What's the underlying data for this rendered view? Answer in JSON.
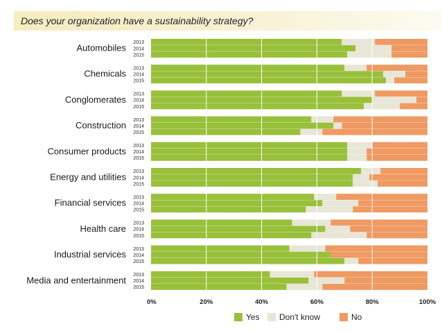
{
  "title": "Does your organization have a sustainability strategy?",
  "colors": {
    "yes": "#99c03a",
    "dont_know": "#e8e6d6",
    "no": "#ef9a62",
    "grid": "#ffffff"
  },
  "chart_data": {
    "type": "bar",
    "orientation": "horizontal",
    "stacked": true,
    "title": "Does your organization have a sustainability strategy?",
    "xlabel": "",
    "ylabel": "",
    "xlim": [
      0,
      100
    ],
    "x_ticks": [
      "0%",
      "20%",
      "40%",
      "60%",
      "80%",
      "100%"
    ],
    "legend": {
      "position": "bottom",
      "entries": [
        "Yes",
        "Don't know",
        "No"
      ]
    },
    "groups": [
      {
        "category": "Automobiles",
        "years": [
          "2013",
          "2014",
          "2015"
        ],
        "yes": [
          69,
          74,
          71
        ],
        "dont_know": [
          12,
          13,
          16
        ],
        "no": [
          19,
          13,
          13
        ]
      },
      {
        "category": "Chemicals",
        "years": [
          "2013",
          "2014",
          "2015"
        ],
        "yes": [
          70,
          84,
          85
        ],
        "dont_know": [
          8,
          8,
          3
        ],
        "no": [
          22,
          8,
          12
        ]
      },
      {
        "category": "Conglomerates",
        "years": [
          "2013",
          "2014",
          "2015"
        ],
        "yes": [
          69,
          80,
          77
        ],
        "dont_know": [
          12,
          16,
          13
        ],
        "no": [
          19,
          4,
          10
        ]
      },
      {
        "category": "Construction",
        "years": [
          "2013",
          "2014",
          "2015"
        ],
        "yes": [
          58,
          66,
          54
        ],
        "dont_know": [
          8,
          3,
          8
        ],
        "no": [
          34,
          31,
          38
        ]
      },
      {
        "category": "Consumer products",
        "years": [
          "2013",
          "2014",
          "2015"
        ],
        "yes": [
          71,
          71,
          71
        ],
        "dont_know": [
          9,
          7,
          7
        ],
        "no": [
          20,
          22,
          22
        ]
      },
      {
        "category": "Energy and utilities",
        "years": [
          "2013",
          "2014",
          "2015"
        ],
        "yes": [
          76,
          73,
          73
        ],
        "dont_know": [
          7,
          6,
          9
        ],
        "no": [
          17,
          21,
          18
        ]
      },
      {
        "category": "Financial services",
        "years": [
          "2013",
          "2014",
          "2015"
        ],
        "yes": [
          59,
          62,
          56
        ],
        "dont_know": [
          8,
          13,
          17
        ],
        "no": [
          33,
          25,
          27
        ]
      },
      {
        "category": "Health care",
        "years": [
          "2013",
          "2014",
          "2015"
        ],
        "yes": [
          51,
          63,
          58
        ],
        "dont_know": [
          14,
          9,
          20
        ],
        "no": [
          35,
          28,
          22
        ]
      },
      {
        "category": "Industrial services",
        "years": [
          "2013",
          "2014",
          "2015"
        ],
        "yes": [
          50,
          65,
          70
        ],
        "dont_know": [
          13,
          0,
          5
        ],
        "no": [
          37,
          35,
          25
        ]
      },
      {
        "category": "Media and entertainment",
        "years": [
          "2013",
          "2014",
          "2015"
        ],
        "yes": [
          43,
          57,
          49
        ],
        "dont_know": [
          16,
          13,
          13
        ],
        "no": [
          41,
          30,
          38
        ]
      }
    ]
  }
}
